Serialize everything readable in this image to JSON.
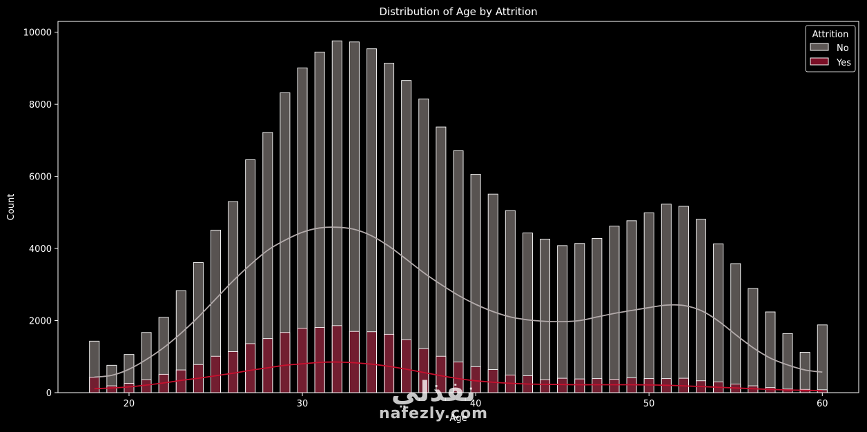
{
  "chart_data": {
    "type": "bar",
    "title": "Distribution of Age by Attrition",
    "xlabel": "Age",
    "ylabel": "Count",
    "xlim": [
      15.9,
      62.1
    ],
    "ylim": [
      0,
      10300
    ],
    "xticks": [
      20,
      30,
      40,
      50,
      60
    ],
    "yticks": [
      0,
      2000,
      4000,
      6000,
      8000,
      10000
    ],
    "grid": false,
    "legend_title": "Attrition",
    "legend_position": "top-right",
    "x": [
      18,
      19,
      20,
      21,
      22,
      23,
      24,
      25,
      26,
      27,
      28,
      29,
      30,
      31,
      32,
      33,
      34,
      35,
      36,
      37,
      38,
      39,
      40,
      41,
      42,
      43,
      44,
      45,
      46,
      47,
      48,
      49,
      50,
      51,
      52,
      53,
      54,
      55,
      56,
      57,
      58,
      59,
      60
    ],
    "series": [
      {
        "name": "No",
        "color": "#5d5755",
        "kde_color": "#b3abab",
        "values": [
          1430,
          760,
          1060,
          1670,
          2090,
          2830,
          3610,
          4510,
          5300,
          6460,
          7220,
          8320,
          9010,
          9450,
          9760,
          9730,
          9540,
          9140,
          8660,
          8150,
          7370,
          6710,
          6060,
          5510,
          5050,
          4430,
          4260,
          4080,
          4140,
          4280,
          4620,
          4770,
          4990,
          5230,
          5170,
          4810,
          4130,
          3580,
          2890,
          2240,
          1640,
          1120,
          1880
        ],
        "kde": [
          [
            18,
            430
          ],
          [
            19,
            480
          ],
          [
            20,
            650
          ],
          [
            21,
            920
          ],
          [
            22,
            1250
          ],
          [
            23,
            1650
          ],
          [
            24,
            2100
          ],
          [
            25,
            2600
          ],
          [
            26,
            3100
          ],
          [
            27,
            3550
          ],
          [
            28,
            3950
          ],
          [
            29,
            4230
          ],
          [
            30,
            4450
          ],
          [
            31,
            4570
          ],
          [
            32,
            4590
          ],
          [
            33,
            4530
          ],
          [
            34,
            4350
          ],
          [
            35,
            4060
          ],
          [
            36,
            3700
          ],
          [
            37,
            3330
          ],
          [
            38,
            3000
          ],
          [
            39,
            2700
          ],
          [
            40,
            2450
          ],
          [
            41,
            2250
          ],
          [
            42,
            2100
          ],
          [
            43,
            2020
          ],
          [
            44,
            1980
          ],
          [
            45,
            1970
          ],
          [
            46,
            2000
          ],
          [
            47,
            2100
          ],
          [
            48,
            2200
          ],
          [
            49,
            2280
          ],
          [
            50,
            2360
          ],
          [
            51,
            2430
          ],
          [
            52,
            2420
          ],
          [
            53,
            2280
          ],
          [
            54,
            1990
          ],
          [
            55,
            1610
          ],
          [
            56,
            1250
          ],
          [
            57,
            960
          ],
          [
            58,
            770
          ],
          [
            59,
            630
          ],
          [
            60,
            570
          ]
        ]
      },
      {
        "name": "Yes",
        "color": "#7a0f26",
        "kde_color": "#c8102e",
        "values": [
          430,
          190,
          260,
          360,
          510,
          630,
          780,
          1010,
          1140,
          1360,
          1500,
          1670,
          1790,
          1810,
          1860,
          1700,
          1690,
          1620,
          1470,
          1220,
          1010,
          850,
          720,
          640,
          490,
          470,
          360,
          400,
          380,
          390,
          370,
          410,
          390,
          390,
          400,
          330,
          300,
          240,
          190,
          140,
          100,
          90,
          80
        ],
        "kde": [
          [
            18,
            110
          ],
          [
            19,
            130
          ],
          [
            20,
            160
          ],
          [
            21,
            210
          ],
          [
            22,
            270
          ],
          [
            23,
            340
          ],
          [
            24,
            400
          ],
          [
            25,
            470
          ],
          [
            26,
            540
          ],
          [
            27,
            620
          ],
          [
            28,
            690
          ],
          [
            29,
            760
          ],
          [
            30,
            800
          ],
          [
            31,
            840
          ],
          [
            32,
            850
          ],
          [
            33,
            830
          ],
          [
            34,
            790
          ],
          [
            35,
            730
          ],
          [
            36,
            650
          ],
          [
            37,
            560
          ],
          [
            38,
            470
          ],
          [
            39,
            390
          ],
          [
            40,
            330
          ],
          [
            41,
            290
          ],
          [
            42,
            260
          ],
          [
            43,
            240
          ],
          [
            44,
            230
          ],
          [
            45,
            225
          ],
          [
            46,
            220
          ],
          [
            47,
            220
          ],
          [
            48,
            220
          ],
          [
            49,
            220
          ],
          [
            50,
            215
          ],
          [
            51,
            205
          ],
          [
            52,
            190
          ],
          [
            53,
            170
          ],
          [
            54,
            150
          ],
          [
            55,
            130
          ],
          [
            56,
            110
          ],
          [
            57,
            90
          ],
          [
            58,
            75
          ],
          [
            59,
            65
          ],
          [
            60,
            55
          ]
        ]
      }
    ]
  },
  "watermark": {
    "arabic": "نفذلي",
    "latin": "nafezly.com"
  }
}
